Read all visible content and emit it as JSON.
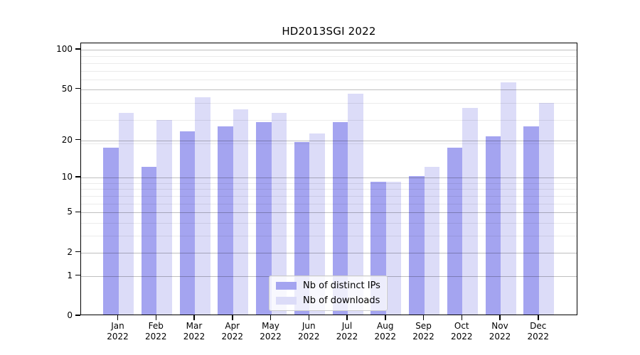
{
  "chart_data": {
    "type": "bar",
    "title": "HD2013SGI 2022",
    "year": "2022",
    "categories": [
      "Jan",
      "Feb",
      "Mar",
      "Apr",
      "May",
      "Jun",
      "Jul",
      "Aug",
      "Sep",
      "Oct",
      "Nov",
      "Dec"
    ],
    "series": [
      {
        "name": "Nb of distinct IPs",
        "color": "#a4a4f0",
        "values": [
          17,
          12,
          23,
          25,
          27,
          19,
          27,
          9,
          10,
          17,
          21,
          25
        ]
      },
      {
        "name": "Nb of downloads",
        "color": "#dcdcf8",
        "values": [
          32,
          28,
          42,
          34,
          32,
          22,
          45,
          9,
          12,
          35,
          55,
          38
        ]
      }
    ],
    "yscale": "log(1+x)",
    "ylim": [
      0,
      112
    ],
    "y_ticks": [
      100,
      50,
      20,
      10,
      5,
      2,
      1,
      0
    ],
    "y_minor_gridlines": [
      3,
      4,
      6,
      7,
      8,
      9,
      19,
      29,
      39,
      59,
      69,
      79,
      89
    ],
    "grid": true,
    "legend_position": "lower center"
  }
}
